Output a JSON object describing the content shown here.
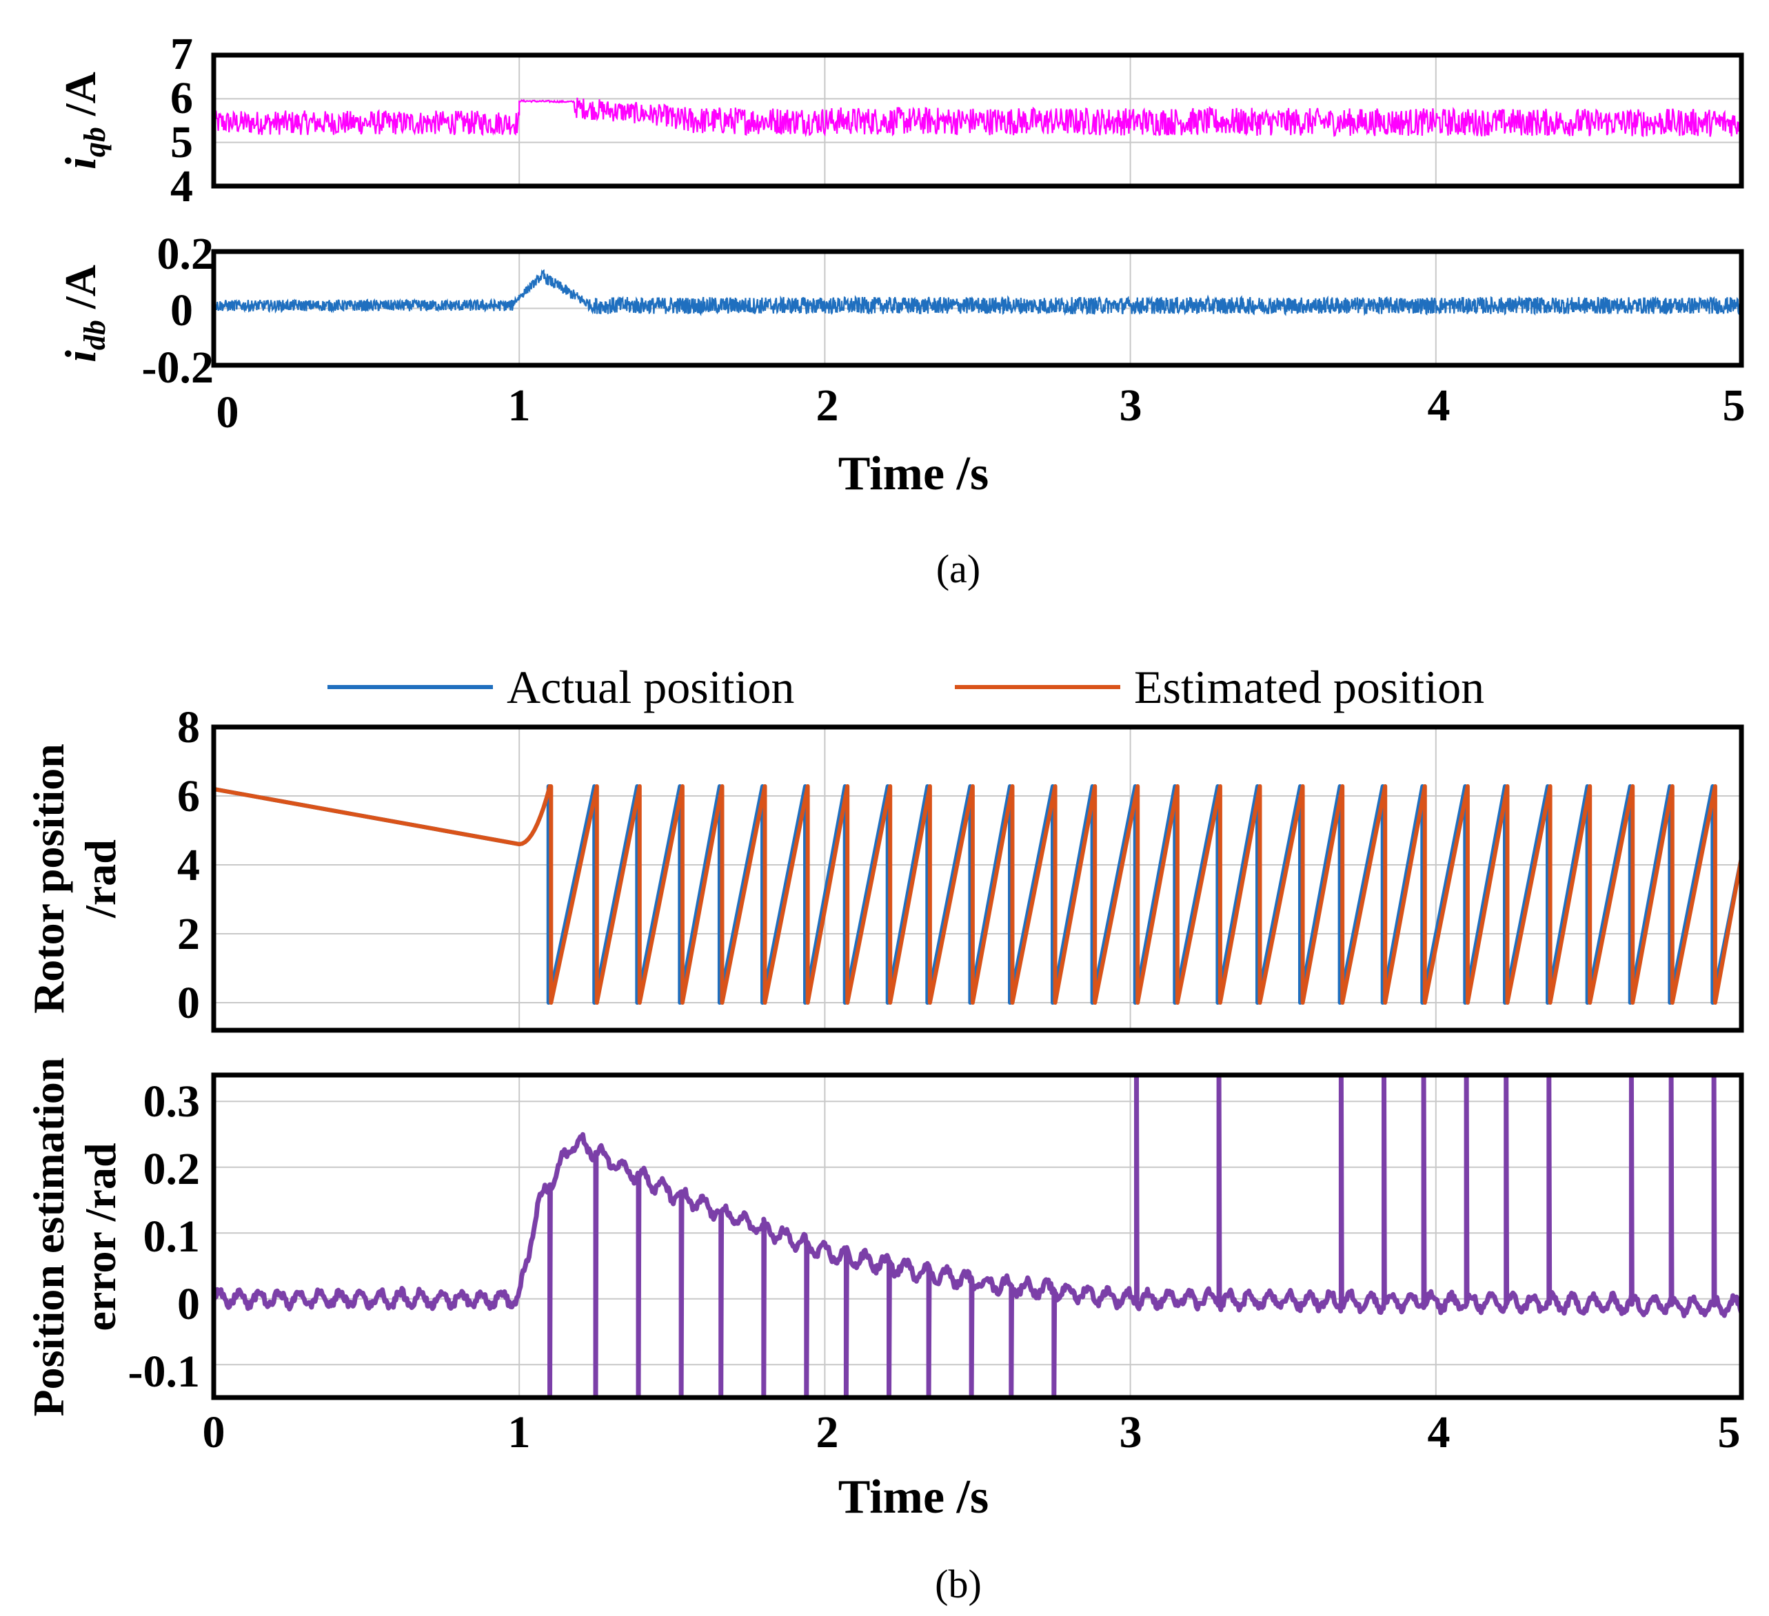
{
  "chart_data": [
    {
      "type": "line",
      "panel": "a-top",
      "ylabel_main": "i",
      "ylabel_sub": "qb",
      "ylabel_unit": " /A",
      "xlim": [
        0,
        5
      ],
      "ylim": [
        4,
        7
      ],
      "yticks": [
        "7",
        "6",
        "5",
        "4"
      ],
      "series": [
        {
          "name": "iqb",
          "color": "#ff00ff",
          "segments": [
            {
              "x": [
                0,
                1
              ],
              "y": [
                5.45,
                5.45
              ],
              "noise": 0.28
            },
            {
              "x": [
                1,
                1.18
              ],
              "y": [
                5.95,
                5.93
              ],
              "noise": 0.02
            },
            {
              "x": [
                1.18,
                1.5
              ],
              "y": [
                5.8,
                5.6
              ],
              "noise": 0.25
            },
            {
              "x": [
                1.5,
                5
              ],
              "y": [
                5.5,
                5.45
              ],
              "noise": 0.32
            }
          ]
        }
      ]
    },
    {
      "type": "line",
      "panel": "a-bottom",
      "ylabel_main": "i",
      "ylabel_sub": "db",
      "ylabel_unit": " /A",
      "xlim": [
        0,
        5
      ],
      "ylim": [
        -0.2,
        0.2
      ],
      "yticks": [
        "0.2",
        "0",
        "-0.2"
      ],
      "xticks": [
        "0",
        "1",
        "2",
        "3",
        "4",
        "5"
      ],
      "xlabel": "Time /s",
      "series": [
        {
          "name": "idb",
          "color": "#1f6fbf",
          "segments": [
            {
              "x": [
                0,
                0.98
              ],
              "y": [
                0.01,
                0.01
              ],
              "noise": 0.02
            },
            {
              "x": [
                0.98,
                1.08
              ],
              "y": [
                0.02,
                0.12
              ],
              "noise": 0.015
            },
            {
              "x": [
                1.08,
                1.25
              ],
              "y": [
                0.11,
                0.0
              ],
              "noise": 0.02
            },
            {
              "x": [
                1.25,
                5
              ],
              "y": [
                0.01,
                0.01
              ],
              "noise": 0.03
            }
          ]
        }
      ]
    },
    {
      "type": "line",
      "panel": "b-top",
      "ylabel": [
        "Rotor position",
        "/rad"
      ],
      "xlim": [
        0,
        5
      ],
      "ylim": [
        -0.8,
        8
      ],
      "yticks": [
        0,
        2,
        4,
        6,
        8
      ],
      "legend": [
        {
          "name": "Actual position",
          "color": "#1f6fbf"
        },
        {
          "name": "Estimated position",
          "color": "#d95319"
        }
      ],
      "series": [
        {
          "name": "Actual position",
          "color": "#1f6fbf",
          "ramp_start": [
            0,
            6.2
          ],
          "ramp_end": [
            1.0,
            4.6
          ],
          "first_peak": 1.1,
          "resets": [
            1.1,
            1.25,
            1.39,
            1.53,
            1.66,
            1.8,
            1.94,
            2.07,
            2.21,
            2.34,
            2.48,
            2.61,
            2.75,
            2.88,
            3.02,
            3.15,
            3.29,
            3.42,
            3.56,
            3.69,
            3.83,
            3.96,
            4.1,
            4.23,
            4.37,
            4.5,
            4.64,
            4.77,
            4.91
          ],
          "end": [
            5.0,
            4.2
          ],
          "wrap": 6.28
        },
        {
          "name": "Estimated position",
          "color": "#d95319",
          "ramp_start": [
            0,
            6.2
          ],
          "ramp_end": [
            1.0,
            4.6
          ],
          "first_peak": 1.1,
          "resets": [
            1.1,
            1.25,
            1.39,
            1.53,
            1.66,
            1.8,
            1.94,
            2.07,
            2.21,
            2.34,
            2.48,
            2.61,
            2.75,
            2.88,
            3.02,
            3.15,
            3.29,
            3.42,
            3.56,
            3.69,
            3.83,
            3.96,
            4.1,
            4.23,
            4.37,
            4.5,
            4.64,
            4.77,
            4.91
          ],
          "end": [
            5.0,
            4.2
          ],
          "wrap": 6.28
        }
      ]
    },
    {
      "type": "line",
      "panel": "b-bottom",
      "ylabel": [
        "Position estimation",
        "error /rad"
      ],
      "xlim": [
        0,
        5
      ],
      "ylim": [
        -0.15,
        0.34
      ],
      "yticks": [
        "0.3",
        "0.2",
        "0.1",
        "0",
        "-0.1"
      ],
      "xticks": [
        "0",
        "1",
        "2",
        "3",
        "4",
        "5"
      ],
      "xlabel": "Time /s",
      "series": [
        {
          "name": "Position estimation error",
          "color": "#7b3fa8",
          "baseline": [
            [
              0,
              0.0
            ],
            [
              1.0,
              0.0
            ],
            [
              1.06,
              0.14
            ],
            [
              1.18,
              0.24
            ],
            [
              1.5,
              0.16
            ],
            [
              2.0,
              0.07
            ],
            [
              2.5,
              0.025
            ],
            [
              3.0,
              0.0
            ],
            [
              5.0,
              -0.01
            ]
          ],
          "noise": 0.012,
          "down_spikes": [
            1.1,
            1.25,
            1.39,
            1.53,
            1.66,
            1.8,
            1.94,
            2.07,
            2.21,
            2.34,
            2.48,
            2.61,
            2.75
          ],
          "up_spikes": [
            3.02,
            3.29,
            3.69,
            3.83,
            3.96,
            4.1,
            4.23,
            4.37,
            4.64,
            4.77,
            4.91
          ]
        }
      ]
    }
  ],
  "captions": {
    "a": "(a)",
    "b": "(b)"
  }
}
